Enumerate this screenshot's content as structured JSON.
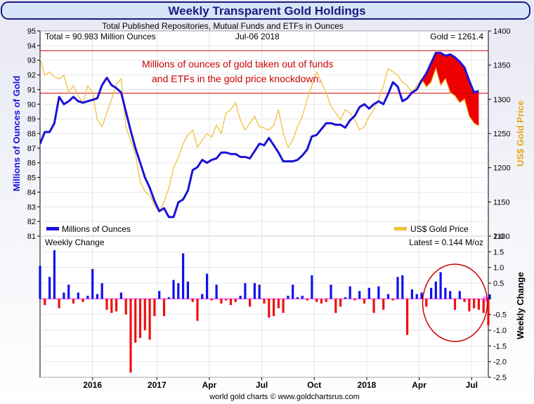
{
  "chart_data": [
    {
      "type": "line",
      "title": "Weekly Transparent Gold Holdings",
      "subtitle": "Total Published Repositories, Mutual Funds and ETFs in Ounces",
      "stat_total": "Total = 90.983 Million Ounces",
      "stat_date": "Jul-06  2018",
      "stat_gold": "Gold = 1261.4",
      "annotation_line1": "Millions of ounces of gold taken out of funds",
      "annotation_line2": "and ETFs in the gold price knockdown.",
      "ylabel_left": "Millions of Ounces of Gold",
      "ylabel_right": "US$ Gold Price",
      "ylim_left": [
        81,
        95
      ],
      "ylim_right": [
        1100,
        1400
      ],
      "yticks_left": [
        "81",
        "82",
        "83",
        "84",
        "85",
        "86",
        "87",
        "88",
        "89",
        "90",
        "91",
        "92",
        "93",
        "94",
        "95"
      ],
      "yticks_right": [
        "1100",
        "1150",
        "1200",
        "1250",
        "1300",
        "1350",
        "1400"
      ],
      "legend": {
        "placement": "bottom",
        "holdings": "Millions of Ounces",
        "gold": "US$ Gold Price"
      },
      "colors": {
        "holdings": "#1a12d8",
        "gold": "#f0c040",
        "fill": "#ee0000",
        "ref_line": "#cc0000",
        "annotation": "#cc0000",
        "title": "#1a1a80"
      },
      "highlight_band": [
        90.75,
        93.65
      ],
      "x_week_index_range": [
        0,
        188
      ],
      "series": [
        {
          "name": "Millions of Ounces",
          "values": [
            87.3,
            88.1,
            88.1,
            88.7,
            90.5,
            90.0,
            90.2,
            90.5,
            90.2,
            90.1,
            90.2,
            90.3,
            90.4,
            91.3,
            91.8,
            91.3,
            91.1,
            90.8,
            89.5,
            88.2,
            87.0,
            86.0,
            85.0,
            84.3,
            83.4,
            82.7,
            82.9,
            82.3,
            82.3,
            83.3,
            83.5,
            84.1,
            85.5,
            85.7,
            86.2,
            86.0,
            86.2,
            86.3,
            86.7,
            86.7,
            86.6,
            86.6,
            86.4,
            86.4,
            86.3,
            86.8,
            87.3,
            87.2,
            87.7,
            87.2,
            86.7,
            86.1,
            86.1,
            86.1,
            86.2,
            86.5,
            86.9,
            87.8,
            87.9,
            88.3,
            88.7,
            88.7,
            88.6,
            88.6,
            88.4,
            88.9,
            89.2,
            89.8,
            90.0,
            89.7,
            90.0,
            90.2,
            90.0,
            90.7,
            91.5,
            91.2,
            90.2,
            90.4,
            90.8,
            91.0,
            91.6,
            92.1,
            92.8,
            93.5,
            93.5,
            93.3,
            93.4,
            93.2,
            92.9,
            92.5,
            91.6,
            90.8,
            90.9
          ],
          "x": [
            0,
            2,
            4,
            6,
            8,
            10,
            12,
            14,
            16,
            18,
            20,
            22,
            24,
            26,
            28,
            30,
            32,
            34,
            36,
            38,
            40,
            42,
            44,
            46,
            48,
            50,
            52,
            54,
            56,
            58,
            60,
            62,
            64,
            66,
            68,
            70,
            72,
            74,
            76,
            78,
            80,
            82,
            84,
            86,
            88,
            90,
            92,
            94,
            96,
            98,
            100,
            102,
            104,
            106,
            108,
            110,
            112,
            114,
            116,
            118,
            120,
            122,
            124,
            126,
            128,
            130,
            132,
            134,
            136,
            138,
            140,
            142,
            144,
            146,
            148,
            150,
            152,
            154,
            156,
            158,
            160,
            162,
            164,
            166,
            168,
            170,
            172,
            174,
            176,
            178,
            180,
            182,
            184
          ]
        },
        {
          "name": "US$ Gold Price",
          "values": [
            1360,
            1335,
            1340,
            1333,
            1330,
            1335,
            1310,
            1320,
            1305,
            1295,
            1320,
            1310,
            1270,
            1260,
            1280,
            1300,
            1322,
            1330,
            1260,
            1240,
            1220,
            1180,
            1165,
            1160,
            1145,
            1135,
            1150,
            1170,
            1200,
            1215,
            1235,
            1248,
            1255,
            1230,
            1240,
            1250,
            1245,
            1262,
            1250,
            1280,
            1285,
            1295,
            1270,
            1255,
            1265,
            1275,
            1260,
            1258,
            1255,
            1262,
            1285,
            1250,
            1230,
            1240,
            1260,
            1275,
            1300,
            1320,
            1340,
            1325,
            1310,
            1290,
            1280,
            1270,
            1285,
            1280,
            1270,
            1255,
            1260,
            1275,
            1285,
            1300,
            1320,
            1345,
            1340,
            1335,
            1325,
            1320,
            1310,
            1320,
            1330,
            1318,
            1325,
            1345,
            1320,
            1330,
            1310,
            1305,
            1295,
            1300,
            1275,
            1265,
            1261
          ],
          "x": [
            0,
            2,
            4,
            6,
            8,
            10,
            12,
            14,
            16,
            18,
            20,
            22,
            24,
            26,
            28,
            30,
            32,
            34,
            36,
            38,
            40,
            42,
            44,
            46,
            48,
            50,
            52,
            54,
            56,
            58,
            60,
            62,
            64,
            66,
            68,
            70,
            72,
            74,
            76,
            78,
            80,
            82,
            84,
            86,
            88,
            90,
            92,
            94,
            96,
            98,
            100,
            102,
            104,
            106,
            108,
            110,
            112,
            114,
            116,
            118,
            120,
            122,
            124,
            126,
            128,
            130,
            132,
            134,
            136,
            138,
            140,
            142,
            144,
            146,
            148,
            150,
            152,
            154,
            156,
            158,
            160,
            162,
            164,
            166,
            168,
            170,
            172,
            174,
            176,
            178,
            180,
            182,
            184
          ]
        }
      ]
    },
    {
      "type": "bar",
      "title": "Weekly Change",
      "latest": "Latest = 0.144 M/oz",
      "ylabel": "Weekly Change",
      "ylim": [
        -2.5,
        2.0
      ],
      "yticks": [
        "2.0",
        "1.5",
        "1.0",
        "0.5",
        "0",
        "-0.5",
        "-1.0",
        "-1.5",
        "-2.0",
        "-2.5"
      ],
      "xticks": [
        "2016",
        "2017",
        "Apr",
        "Jul",
        "Oct",
        "2018",
        "Apr",
        "Jul"
      ],
      "xtick_week_index": [
        22,
        49,
        71,
        93,
        115,
        137,
        159,
        181
      ],
      "colors": {
        "positive": "#1010ee",
        "negative": "#ee1010",
        "zero_label": "#ee00ee"
      },
      "circle_annotation_center_week": 174,
      "values": [
        1.05,
        -0.2,
        0.7,
        1.55,
        -0.3,
        0.2,
        0.45,
        -0.15,
        0.2,
        -0.1,
        0.1,
        0.95,
        0.15,
        0.5,
        -0.35,
        -0.45,
        -0.4,
        0.2,
        -0.5,
        -2.35,
        -1.4,
        -1.25,
        -1.0,
        -1.3,
        -0.55,
        0.25,
        -0.55,
        0.05,
        0.6,
        0.5,
        1.45,
        0.55,
        -0.1,
        -0.7,
        0.15,
        0.8,
        -0.05,
        0.45,
        -0.15,
        -0.05,
        -0.2,
        -0.1,
        0.1,
        0.5,
        -0.25,
        0.5,
        0.45,
        -0.15,
        -0.6,
        -0.55,
        -0.3,
        -0.45,
        0.1,
        0.45,
        0.05,
        0.1,
        -0.05,
        0.75,
        -0.1,
        -0.15,
        -0.1,
        0.45,
        -0.45,
        -0.25,
        0.05,
        0.4,
        -0.05,
        0.25,
        -0.15,
        0.35,
        -0.45,
        0.4,
        -0.35,
        0.15,
        -0.05,
        0.7,
        0.75,
        -1.15,
        0.3,
        0.15,
        0.2,
        -0.25,
        0.35,
        0.55,
        0.85,
        0.35,
        0.25,
        -0.35,
        0.25,
        -0.1,
        -0.4,
        -0.3,
        -0.35,
        -0.45,
        -0.85,
        0.144
      ],
      "x": [
        0,
        2,
        4,
        6,
        8,
        10,
        12,
        14,
        16,
        18,
        20,
        22,
        24,
        26,
        28,
        30,
        32,
        34,
        36,
        38,
        40,
        42,
        44,
        46,
        48,
        50,
        52,
        54,
        56,
        58,
        60,
        62,
        64,
        66,
        68,
        70,
        72,
        74,
        76,
        78,
        80,
        82,
        84,
        86,
        88,
        90,
        92,
        94,
        96,
        98,
        100,
        102,
        104,
        106,
        108,
        110,
        112,
        114,
        116,
        118,
        120,
        122,
        124,
        126,
        128,
        130,
        132,
        134,
        136,
        138,
        140,
        142,
        144,
        146,
        148,
        150,
        152,
        154,
        156,
        158,
        160,
        162,
        164,
        166,
        168,
        170,
        172,
        174,
        176,
        178,
        180,
        182,
        184,
        186,
        188,
        188
      ]
    }
  ],
  "footer": "world gold charts © www.goldchartsrus.com"
}
